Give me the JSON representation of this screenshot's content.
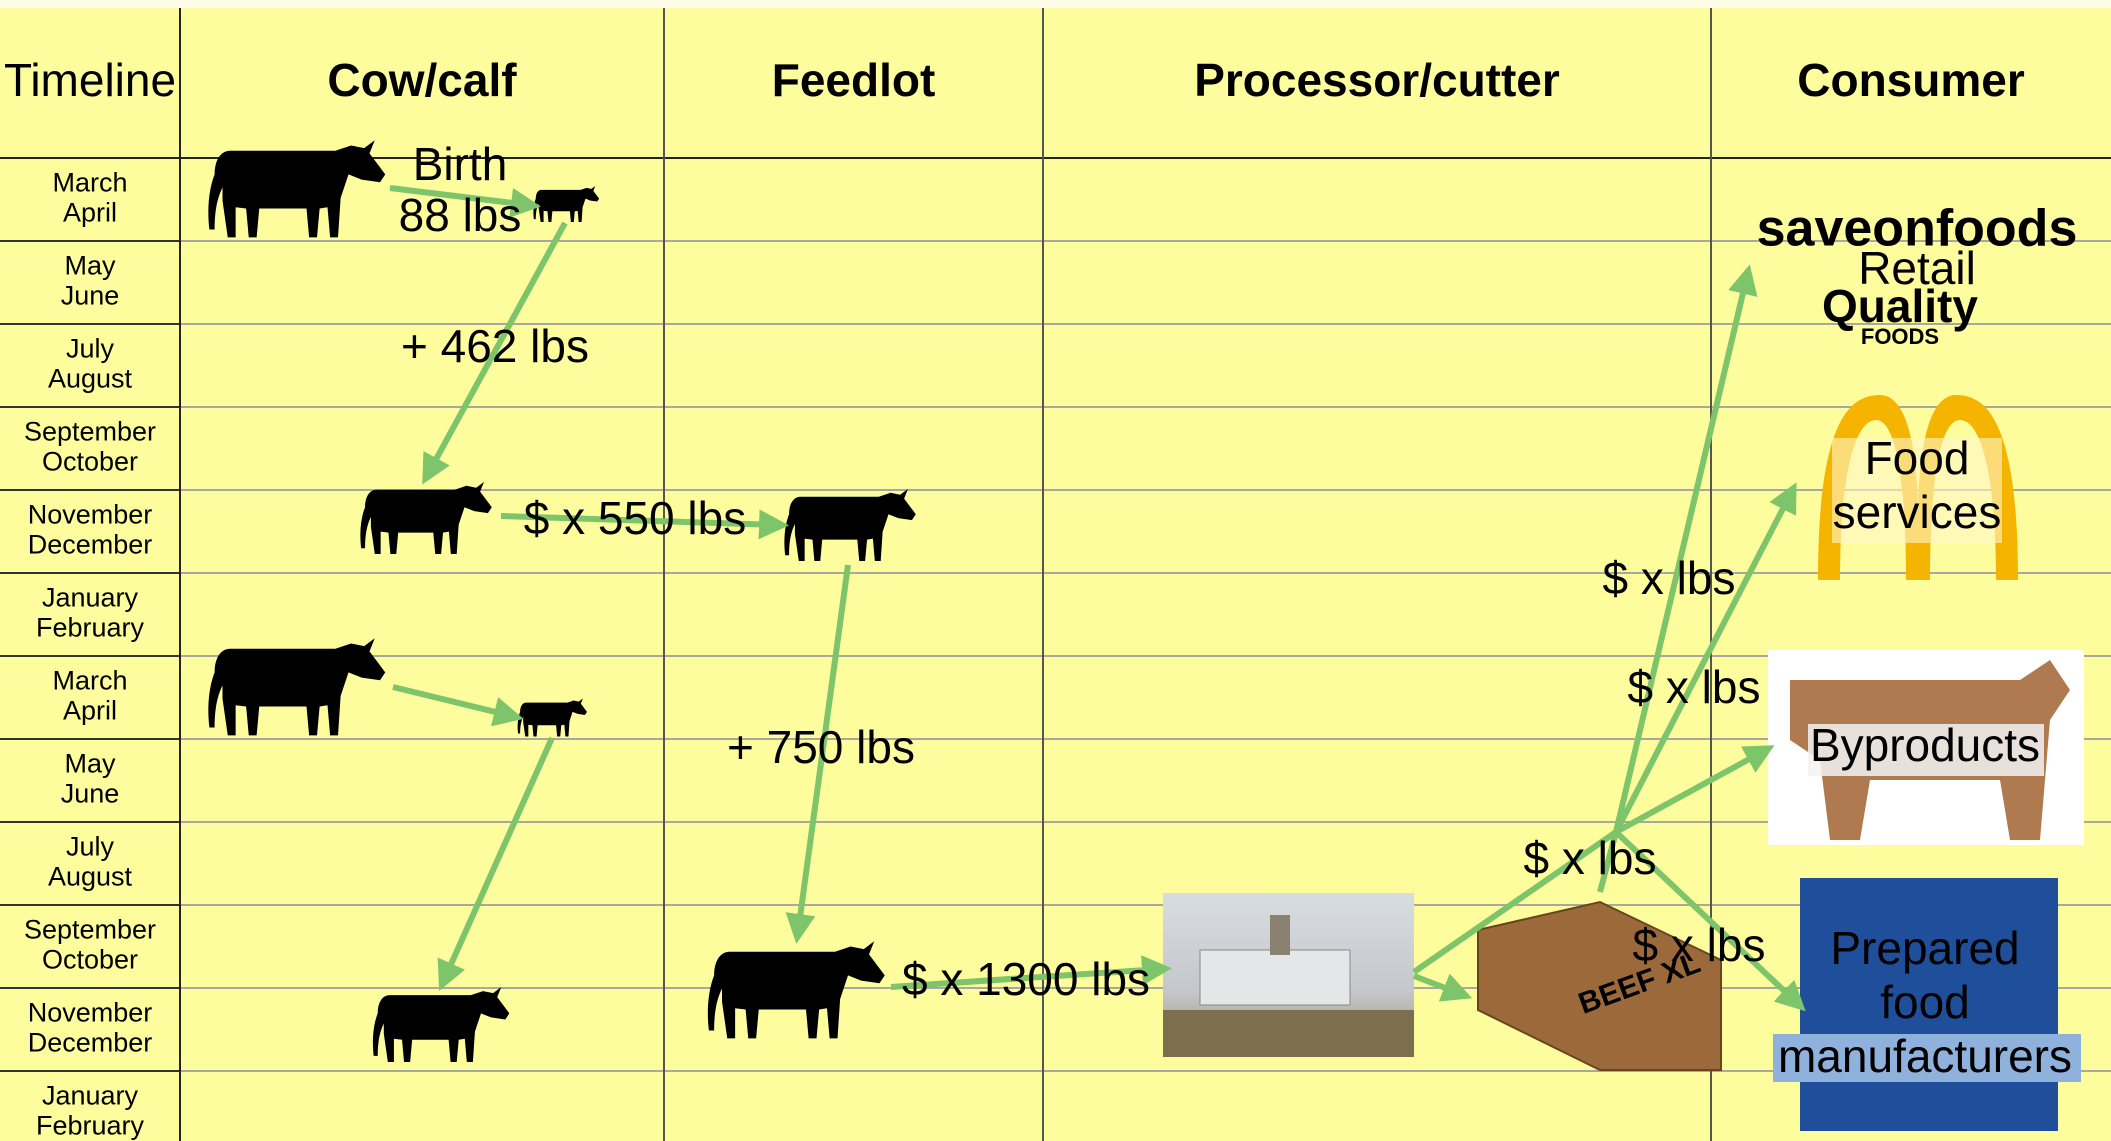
{
  "header": {
    "columns": [
      "Timeline",
      "Cow/calf",
      "Feedlot",
      "Processor/cutter",
      "Consumer"
    ]
  },
  "timeline": {
    "rows": [
      [
        "March",
        "April"
      ],
      [
        "May",
        "June"
      ],
      [
        "July",
        "August"
      ],
      [
        "September",
        "October"
      ],
      [
        "November",
        "December"
      ],
      [
        "January",
        "February"
      ],
      [
        "March",
        "April"
      ],
      [
        "May",
        "June"
      ],
      [
        "July",
        "August"
      ],
      [
        "September",
        "October"
      ],
      [
        "November",
        "December"
      ],
      [
        "January",
        "February"
      ]
    ]
  },
  "labels": {
    "birth": "Birth",
    "birth_weight": "88 lbs",
    "calf_gain": "+ 462 lbs",
    "feeder_sale": "$ x 550 lbs",
    "feedlot_gain": "+ 750 lbs",
    "fed_sale": "$ x 1300 lbs",
    "retail_price": "$ x lbs",
    "food_service_price": "$ x lbs",
    "processor_price": "$ x lbs",
    "manufacturer_price": "$ x lbs"
  },
  "consumers": {
    "retail": "Retail",
    "food_services": [
      "Food",
      "services"
    ],
    "byproducts": "Byproducts",
    "prepared_food": [
      "Prepared",
      "food",
      "manufacturers"
    ]
  },
  "logos": {
    "save_on_foods": "saveonfoods",
    "quality": "Quality",
    "quality_foods": "FOODS",
    "beef_box": "BEEF XL"
  }
}
